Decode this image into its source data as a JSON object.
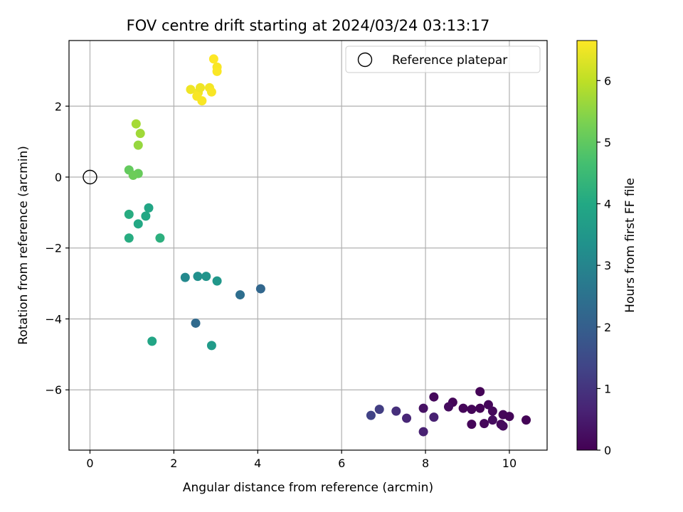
{
  "chart_data": {
    "type": "scatter",
    "title": "FOV centre drift starting at 2024/03/24 03:13:17",
    "xlabel": "Angular distance from reference (arcmin)",
    "ylabel": "Rotation from reference (arcmin)",
    "xlim": [
      -0.5,
      10.9
    ],
    "ylim": [
      -7.7,
      3.85
    ],
    "xticks": [
      0,
      2,
      4,
      6,
      8,
      10
    ],
    "yticks": [
      -6,
      -4,
      -2,
      0,
      2
    ],
    "xtick_labels": [
      "0",
      "2",
      "4",
      "6",
      "8",
      "10"
    ],
    "ytick_labels": [
      "−6",
      "−4",
      "−2",
      "0",
      "2"
    ],
    "grid": true,
    "colormap": "viridis",
    "colorbar": {
      "label": "Hours from first FF file",
      "min": 0,
      "max": 6.65,
      "ticks": [
        0,
        1,
        2,
        3,
        4,
        5,
        6
      ],
      "tick_labels": [
        "0",
        "1",
        "2",
        "3",
        "4",
        "5",
        "6"
      ]
    },
    "legend": {
      "position": "top-right",
      "entries": [
        {
          "label": "Reference platepar",
          "marker": "open-circle"
        }
      ]
    },
    "reference_point": {
      "x": 0,
      "y": 0
    },
    "points": [
      {
        "x": 9.3,
        "y": -6.05,
        "t": 0.05
      },
      {
        "x": 8.2,
        "y": -6.2,
        "t": 0.15
      },
      {
        "x": 8.65,
        "y": -6.35,
        "t": 0.1
      },
      {
        "x": 8.55,
        "y": -6.48,
        "t": 0.2
      },
      {
        "x": 7.95,
        "y": -6.52,
        "t": 0.3
      },
      {
        "x": 8.9,
        "y": -6.52,
        "t": 0.1
      },
      {
        "x": 9.3,
        "y": -6.52,
        "t": 0.05
      },
      {
        "x": 9.1,
        "y": -6.55,
        "t": 0.08
      },
      {
        "x": 9.5,
        "y": -6.42,
        "t": 0.12
      },
      {
        "x": 9.6,
        "y": -6.6,
        "t": 0.15
      },
      {
        "x": 9.85,
        "y": -6.7,
        "t": 0.1
      },
      {
        "x": 10.0,
        "y": -6.75,
        "t": 0.08
      },
      {
        "x": 10.4,
        "y": -6.85,
        "t": 0.05
      },
      {
        "x": 9.6,
        "y": -6.85,
        "t": 0.2
      },
      {
        "x": 9.4,
        "y": -6.95,
        "t": 0.12
      },
      {
        "x": 9.1,
        "y": -6.97,
        "t": 0.1
      },
      {
        "x": 9.8,
        "y": -6.97,
        "t": 0.15
      },
      {
        "x": 9.85,
        "y": -7.02,
        "t": 0.18
      },
      {
        "x": 8.2,
        "y": -6.77,
        "t": 0.6
      },
      {
        "x": 7.55,
        "y": -6.8,
        "t": 0.7
      },
      {
        "x": 7.95,
        "y": -7.18,
        "t": 0.6
      },
      {
        "x": 7.3,
        "y": -6.6,
        "t": 0.9
      },
      {
        "x": 6.9,
        "y": -6.55,
        "t": 1.2
      },
      {
        "x": 6.7,
        "y": -6.72,
        "t": 1.3
      },
      {
        "x": 4.07,
        "y": -3.15,
        "t": 2.2
      },
      {
        "x": 3.58,
        "y": -3.32,
        "t": 2.4
      },
      {
        "x": 2.52,
        "y": -4.12,
        "t": 2.3
      },
      {
        "x": 2.27,
        "y": -2.83,
        "t": 3.1
      },
      {
        "x": 2.57,
        "y": -2.8,
        "t": 3.3
      },
      {
        "x": 2.77,
        "y": -2.8,
        "t": 3.4
      },
      {
        "x": 3.03,
        "y": -2.93,
        "t": 3.5
      },
      {
        "x": 2.9,
        "y": -4.75,
        "t": 3.6
      },
      {
        "x": 1.48,
        "y": -4.63,
        "t": 3.9
      },
      {
        "x": 1.4,
        "y": -0.87,
        "t": 3.9
      },
      {
        "x": 1.33,
        "y": -1.1,
        "t": 3.95
      },
      {
        "x": 1.15,
        "y": -1.32,
        "t": 4.0
      },
      {
        "x": 0.93,
        "y": -1.05,
        "t": 4.1
      },
      {
        "x": 0.93,
        "y": -1.72,
        "t": 4.1
      },
      {
        "x": 1.67,
        "y": -1.72,
        "t": 4.2
      },
      {
        "x": 0.93,
        "y": 0.2,
        "t": 5.05
      },
      {
        "x": 1.15,
        "y": 0.1,
        "t": 5.1
      },
      {
        "x": 1.03,
        "y": 0.05,
        "t": 5.15
      },
      {
        "x": 1.15,
        "y": 0.9,
        "t": 5.6
      },
      {
        "x": 1.2,
        "y": 1.23,
        "t": 5.7
      },
      {
        "x": 1.1,
        "y": 1.5,
        "t": 5.75
      },
      {
        "x": 2.4,
        "y": 2.47,
        "t": 6.5
      },
      {
        "x": 2.58,
        "y": 2.38,
        "t": 6.55
      },
      {
        "x": 2.55,
        "y": 2.28,
        "t": 6.6
      },
      {
        "x": 2.67,
        "y": 2.15,
        "t": 6.6
      },
      {
        "x": 2.63,
        "y": 2.52,
        "t": 6.5
      },
      {
        "x": 2.85,
        "y": 2.52,
        "t": 6.55
      },
      {
        "x": 2.9,
        "y": 2.4,
        "t": 6.6
      },
      {
        "x": 2.95,
        "y": 3.33,
        "t": 6.65
      },
      {
        "x": 3.03,
        "y": 3.1,
        "t": 6.6
      },
      {
        "x": 3.03,
        "y": 2.98,
        "t": 6.62
      }
    ]
  }
}
